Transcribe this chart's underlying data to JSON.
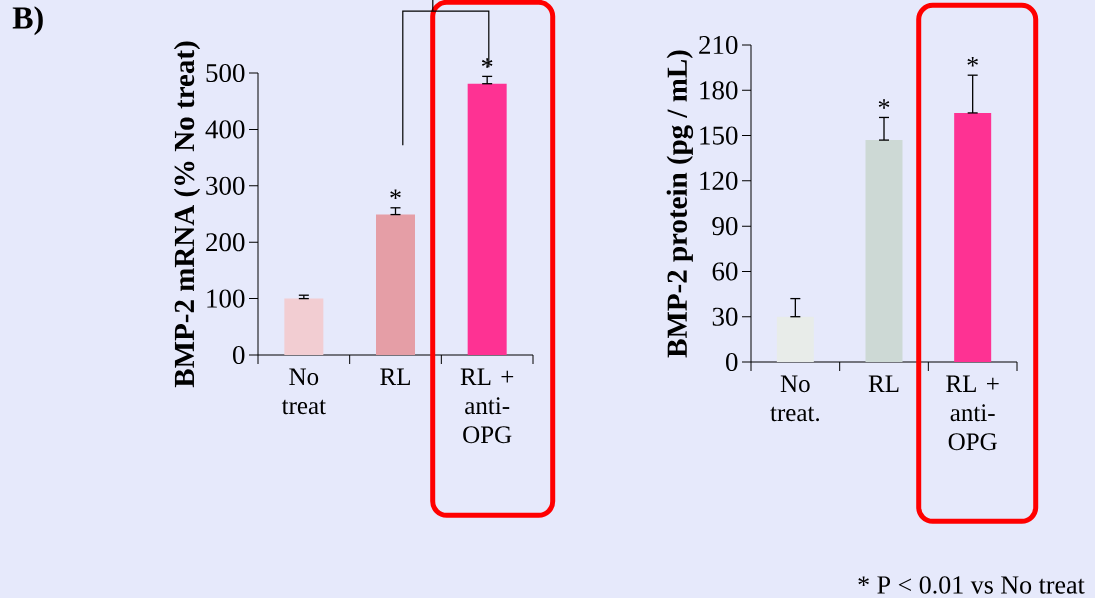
{
  "chart_data": [
    {
      "type": "bar",
      "ylabel": "BMP-2 mRNA (% No treat)",
      "categories": [
        "No treat",
        "RL",
        "RL + anti-OPG"
      ],
      "values": [
        100,
        249,
        481
      ],
      "colors": [
        "#f2cdd2",
        "#e59ea6",
        "#fe3293"
      ],
      "errors": [
        [
          100,
          106
        ],
        [
          249,
          261
        ],
        [
          481,
          494
        ]
      ],
      "ylim": [
        0,
        500
      ],
      "yticks": [
        0,
        100,
        200,
        300,
        400,
        500
      ],
      "annotations": [
        "B)",
        {
          "text": "*",
          "x": "RL",
          "y": 261
        },
        {
          "text": "*",
          "x": "RL + anti-OPG",
          "y": 494
        }
      ]
    },
    {
      "type": "bar",
      "ylabel": "BMP-2 protein (pg / mL)",
      "categories": [
        "No treat.",
        "RL",
        "RL + anti-OPG"
      ],
      "values": [
        30,
        147,
        165
      ],
      "colors": [
        "#e8ece9",
        "#cdd9d5",
        "#fe3293"
      ],
      "errors": [
        [
          30,
          42
        ],
        [
          147,
          162
        ],
        [
          165,
          190
        ]
      ],
      "ylim": [
        0,
        210
      ],
      "yticks": [
        0,
        30,
        60,
        90,
        120,
        150,
        180,
        210
      ],
      "annotations": [
        "* P < 0.01 vs No treat",
        {
          "text": "*",
          "x": "RL",
          "y": 162
        },
        {
          "text": "*",
          "x": "RL + anti-OPG",
          "y": 190
        }
      ]
    }
  ]
}
